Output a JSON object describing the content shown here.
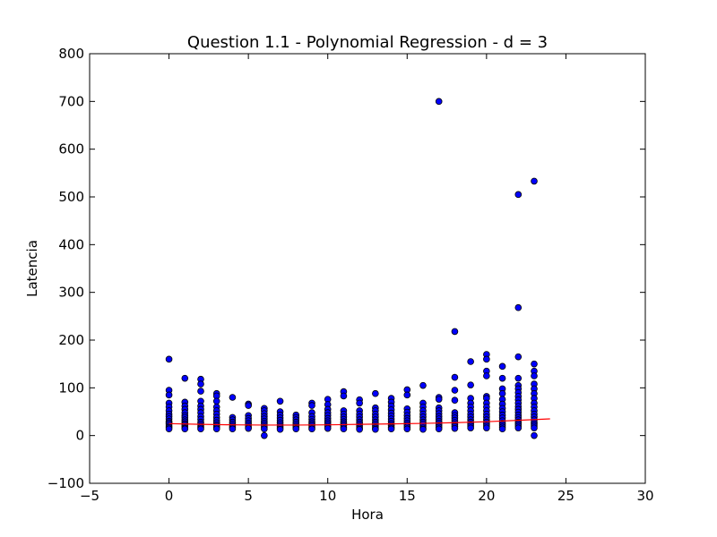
{
  "chart_data": {
    "type": "scatter",
    "title": "Question 1.1 - Polynomial Regression - d = 3",
    "xlabel": "Hora",
    "ylabel": "Latencia",
    "xlim": [
      -5,
      30
    ],
    "ylim": [
      -100,
      800
    ],
    "xticks": [
      -5,
      0,
      5,
      10,
      15,
      20,
      25,
      30
    ],
    "yticks": [
      -100,
      0,
      100,
      200,
      300,
      400,
      500,
      600,
      700,
      800
    ],
    "xtick_labels": [
      "−5",
      "0",
      "5",
      "10",
      "15",
      "20",
      "25",
      "30"
    ],
    "ytick_labels": [
      "−100",
      "0",
      "100",
      "200",
      "300",
      "400",
      "500",
      "600",
      "700",
      "800"
    ],
    "grid": false,
    "colors": {
      "points": "#0000ff",
      "point_edge": "#000000",
      "fit_line": "#ff0000"
    },
    "series": [
      {
        "type": "scatter",
        "points": [
          [
            0,
            160
          ],
          [
            0,
            95
          ],
          [
            0,
            85
          ],
          [
            0,
            68
          ],
          [
            0,
            60
          ],
          [
            0,
            52
          ],
          [
            0,
            45
          ],
          [
            0,
            40
          ],
          [
            0,
            35
          ],
          [
            0,
            30
          ],
          [
            0,
            27
          ],
          [
            0,
            24
          ],
          [
            0,
            20
          ],
          [
            0,
            17
          ],
          [
            0,
            14
          ],
          [
            1,
            120
          ],
          [
            1,
            70
          ],
          [
            1,
            62
          ],
          [
            1,
            55
          ],
          [
            1,
            48
          ],
          [
            1,
            42
          ],
          [
            1,
            38
          ],
          [
            1,
            33
          ],
          [
            1,
            29
          ],
          [
            1,
            25
          ],
          [
            1,
            22
          ],
          [
            1,
            19
          ],
          [
            1,
            16
          ],
          [
            1,
            14
          ],
          [
            2,
            118
          ],
          [
            2,
            108
          ],
          [
            2,
            93
          ],
          [
            2,
            72
          ],
          [
            2,
            62
          ],
          [
            2,
            55
          ],
          [
            2,
            48
          ],
          [
            2,
            40
          ],
          [
            2,
            34
          ],
          [
            2,
            28
          ],
          [
            2,
            24
          ],
          [
            2,
            20
          ],
          [
            2,
            17
          ],
          [
            2,
            14
          ],
          [
            3,
            88
          ],
          [
            3,
            83
          ],
          [
            3,
            72
          ],
          [
            3,
            60
          ],
          [
            3,
            52
          ],
          [
            3,
            45
          ],
          [
            3,
            38
          ],
          [
            3,
            32
          ],
          [
            3,
            27
          ],
          [
            3,
            23
          ],
          [
            3,
            20
          ],
          [
            3,
            17
          ],
          [
            3,
            14
          ],
          [
            4,
            80
          ],
          [
            4,
            38
          ],
          [
            4,
            33
          ],
          [
            4,
            28
          ],
          [
            4,
            24
          ],
          [
            4,
            20
          ],
          [
            4,
            17
          ],
          [
            4,
            14
          ],
          [
            5,
            66
          ],
          [
            5,
            63
          ],
          [
            5,
            42
          ],
          [
            5,
            36
          ],
          [
            5,
            31
          ],
          [
            5,
            26
          ],
          [
            5,
            22
          ],
          [
            5,
            18
          ],
          [
            5,
            15
          ],
          [
            6,
            57
          ],
          [
            6,
            52
          ],
          [
            6,
            46
          ],
          [
            6,
            40
          ],
          [
            6,
            35
          ],
          [
            6,
            30
          ],
          [
            6,
            26
          ],
          [
            6,
            22
          ],
          [
            6,
            18
          ],
          [
            6,
            14
          ],
          [
            6,
            0
          ],
          [
            7,
            72
          ],
          [
            7,
            50
          ],
          [
            7,
            43
          ],
          [
            7,
            37
          ],
          [
            7,
            32
          ],
          [
            7,
            27
          ],
          [
            7,
            23
          ],
          [
            7,
            19
          ],
          [
            7,
            16
          ],
          [
            7,
            13
          ],
          [
            8,
            43
          ],
          [
            8,
            38
          ],
          [
            8,
            33
          ],
          [
            8,
            28
          ],
          [
            8,
            24
          ],
          [
            8,
            20
          ],
          [
            8,
            17
          ],
          [
            8,
            14
          ],
          [
            9,
            68
          ],
          [
            9,
            63
          ],
          [
            9,
            48
          ],
          [
            9,
            40
          ],
          [
            9,
            34
          ],
          [
            9,
            29
          ],
          [
            9,
            25
          ],
          [
            9,
            21
          ],
          [
            9,
            17
          ],
          [
            9,
            14
          ],
          [
            10,
            76
          ],
          [
            10,
            65
          ],
          [
            10,
            55
          ],
          [
            10,
            48
          ],
          [
            10,
            42
          ],
          [
            10,
            36
          ],
          [
            10,
            31
          ],
          [
            10,
            27
          ],
          [
            10,
            23
          ],
          [
            10,
            19
          ],
          [
            10,
            15
          ],
          [
            11,
            92
          ],
          [
            11,
            83
          ],
          [
            11,
            52
          ],
          [
            11,
            45
          ],
          [
            11,
            39
          ],
          [
            11,
            34
          ],
          [
            11,
            29
          ],
          [
            11,
            25
          ],
          [
            11,
            21
          ],
          [
            11,
            17
          ],
          [
            11,
            14
          ],
          [
            12,
            75
          ],
          [
            12,
            68
          ],
          [
            12,
            52
          ],
          [
            12,
            45
          ],
          [
            12,
            39
          ],
          [
            12,
            33
          ],
          [
            12,
            28
          ],
          [
            12,
            24
          ],
          [
            12,
            20
          ],
          [
            12,
            16
          ],
          [
            12,
            13
          ],
          [
            13,
            88
          ],
          [
            13,
            58
          ],
          [
            13,
            52
          ],
          [
            13,
            45
          ],
          [
            13,
            39
          ],
          [
            13,
            33
          ],
          [
            13,
            28
          ],
          [
            13,
            24
          ],
          [
            13,
            20
          ],
          [
            13,
            16
          ],
          [
            13,
            13
          ],
          [
            14,
            78
          ],
          [
            14,
            70
          ],
          [
            14,
            62
          ],
          [
            14,
            54
          ],
          [
            14,
            47
          ],
          [
            14,
            41
          ],
          [
            14,
            35
          ],
          [
            14,
            30
          ],
          [
            14,
            25
          ],
          [
            14,
            21
          ],
          [
            14,
            17
          ],
          [
            14,
            14
          ],
          [
            15,
            96
          ],
          [
            15,
            85
          ],
          [
            15,
            56
          ],
          [
            15,
            49
          ],
          [
            15,
            42
          ],
          [
            15,
            36
          ],
          [
            15,
            31
          ],
          [
            15,
            26
          ],
          [
            15,
            22
          ],
          [
            15,
            18
          ],
          [
            15,
            14
          ],
          [
            16,
            105
          ],
          [
            16,
            68
          ],
          [
            16,
            60
          ],
          [
            16,
            52
          ],
          [
            16,
            45
          ],
          [
            16,
            39
          ],
          [
            16,
            33
          ],
          [
            16,
            28
          ],
          [
            16,
            24
          ],
          [
            16,
            20
          ],
          [
            16,
            16
          ],
          [
            16,
            13
          ],
          [
            17,
            700
          ],
          [
            17,
            80
          ],
          [
            17,
            76
          ],
          [
            17,
            58
          ],
          [
            17,
            52
          ],
          [
            17,
            46
          ],
          [
            17,
            40
          ],
          [
            17,
            35
          ],
          [
            17,
            30
          ],
          [
            17,
            26
          ],
          [
            17,
            22
          ],
          [
            17,
            18
          ],
          [
            17,
            14
          ],
          [
            18,
            218
          ],
          [
            18,
            122
          ],
          [
            18,
            95
          ],
          [
            18,
            74
          ],
          [
            18,
            48
          ],
          [
            18,
            42
          ],
          [
            18,
            37
          ],
          [
            18,
            32
          ],
          [
            18,
            27
          ],
          [
            18,
            23
          ],
          [
            18,
            19
          ],
          [
            18,
            15
          ],
          [
            19,
            155
          ],
          [
            19,
            106
          ],
          [
            19,
            78
          ],
          [
            19,
            68
          ],
          [
            19,
            60
          ],
          [
            19,
            52
          ],
          [
            19,
            45
          ],
          [
            19,
            39
          ],
          [
            19,
            33
          ],
          [
            19,
            28
          ],
          [
            19,
            24
          ],
          [
            19,
            20
          ],
          [
            19,
            16
          ],
          [
            20,
            170
          ],
          [
            20,
            160
          ],
          [
            20,
            135
          ],
          [
            20,
            125
          ],
          [
            20,
            82
          ],
          [
            20,
            78
          ],
          [
            20,
            68
          ],
          [
            20,
            60
          ],
          [
            20,
            52
          ],
          [
            20,
            45
          ],
          [
            20,
            39
          ],
          [
            20,
            33
          ],
          [
            20,
            28
          ],
          [
            20,
            24
          ],
          [
            20,
            20
          ],
          [
            20,
            16
          ],
          [
            21,
            145
          ],
          [
            21,
            120
          ],
          [
            21,
            98
          ],
          [
            21,
            88
          ],
          [
            21,
            76
          ],
          [
            21,
            66
          ],
          [
            21,
            57
          ],
          [
            21,
            50
          ],
          [
            21,
            43
          ],
          [
            21,
            37
          ],
          [
            21,
            31
          ],
          [
            21,
            26
          ],
          [
            21,
            22
          ],
          [
            21,
            18
          ],
          [
            21,
            14
          ],
          [
            22,
            505
          ],
          [
            22,
            268
          ],
          [
            22,
            165
          ],
          [
            22,
            120
          ],
          [
            22,
            105
          ],
          [
            22,
            98
          ],
          [
            22,
            90
          ],
          [
            22,
            82
          ],
          [
            22,
            75
          ],
          [
            22,
            68
          ],
          [
            22,
            61
          ],
          [
            22,
            55
          ],
          [
            22,
            49
          ],
          [
            22,
            43
          ],
          [
            22,
            38
          ],
          [
            22,
            33
          ],
          [
            22,
            28
          ],
          [
            22,
            24
          ],
          [
            22,
            20
          ],
          [
            22,
            16
          ],
          [
            23,
            533
          ],
          [
            23,
            150
          ],
          [
            23,
            135
          ],
          [
            23,
            125
          ],
          [
            23,
            108
          ],
          [
            23,
            98
          ],
          [
            23,
            88
          ],
          [
            23,
            78
          ],
          [
            23,
            68
          ],
          [
            23,
            60
          ],
          [
            23,
            52
          ],
          [
            23,
            45
          ],
          [
            23,
            39
          ],
          [
            23,
            33
          ],
          [
            23,
            28
          ],
          [
            23,
            24
          ],
          [
            23,
            20
          ],
          [
            23,
            16
          ],
          [
            23,
            0
          ]
        ]
      },
      {
        "type": "line",
        "points": [
          [
            0,
            25
          ],
          [
            2,
            23.5
          ],
          [
            4,
            22.5
          ],
          [
            6,
            22
          ],
          [
            8,
            22
          ],
          [
            10,
            22.5
          ],
          [
            12,
            23.5
          ],
          [
            14,
            24.5
          ],
          [
            16,
            25.5
          ],
          [
            18,
            27
          ],
          [
            20,
            29
          ],
          [
            22,
            32
          ],
          [
            24,
            35
          ]
        ]
      }
    ]
  }
}
